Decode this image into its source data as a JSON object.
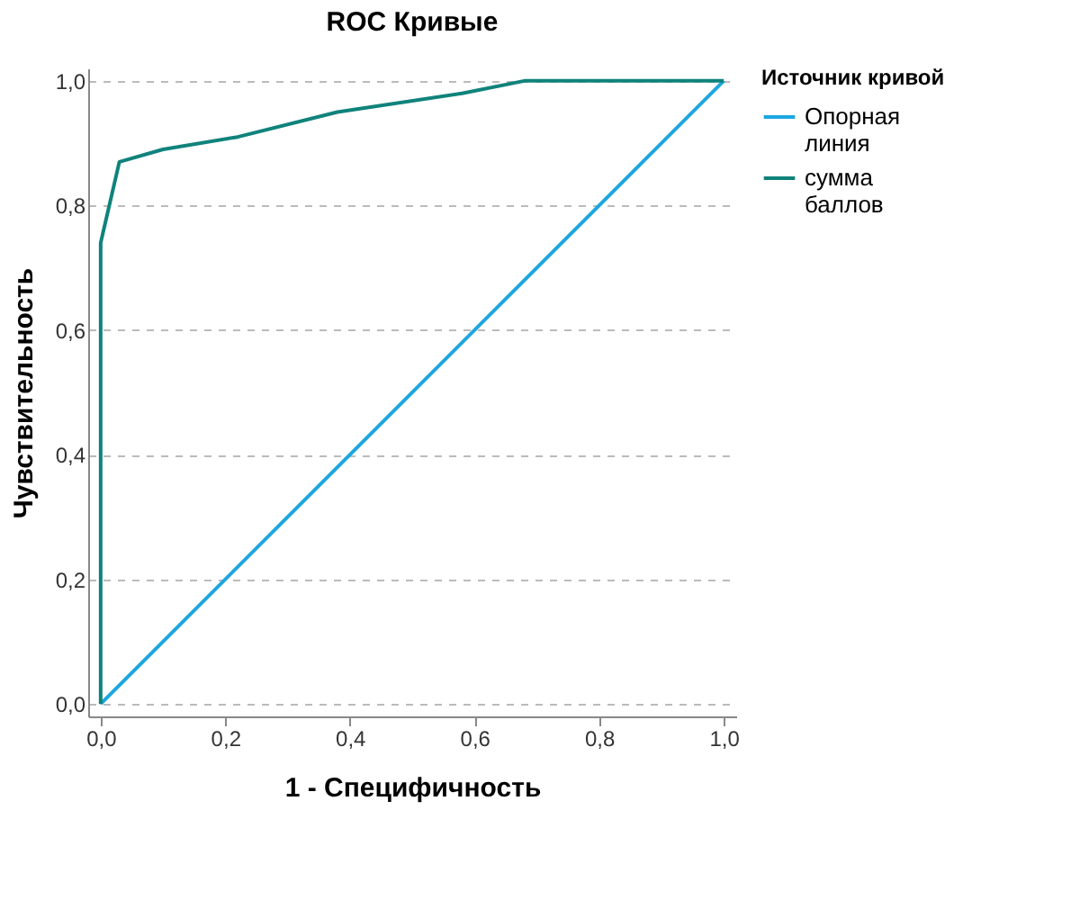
{
  "chart_data": {
    "type": "line",
    "title": "ROC Кривые",
    "xlabel": "1 - Специфичность",
    "ylabel": "Чувствительность",
    "legend_title": "Источник кривой",
    "legend": "top right",
    "grid": "y",
    "line_style": "solid",
    "marker": "none",
    "xlim": [
      -0.02,
      1.02
    ],
    "ylim": [
      -0.02,
      1.02
    ],
    "xticks": [
      {
        "value": 0,
        "label": "0,0"
      },
      {
        "value": 0.2,
        "label": "0,2"
      },
      {
        "value": 0.4,
        "label": "0,4"
      },
      {
        "value": 0.6,
        "label": "0,6"
      },
      {
        "value": 0.8,
        "label": "0,8"
      },
      {
        "value": 1,
        "label": "1,0"
      }
    ],
    "yticks": [
      {
        "value": 0,
        "label": "0,0"
      },
      {
        "value": 0.2,
        "label": "0,2"
      },
      {
        "value": 0.4,
        "label": "0,4"
      },
      {
        "value": 0.6,
        "label": "0,6"
      },
      {
        "value": 0.8,
        "label": "0,8"
      },
      {
        "value": 1,
        "label": "1,0"
      }
    ],
    "series": [
      {
        "name": "Опорная линия",
        "color": "#1ba7e1",
        "x": [
          0,
          1
        ],
        "values": [
          0,
          1
        ]
      },
      {
        "name": "сумма баллов",
        "color": "#0f837b",
        "x": [
          0,
          0,
          0.03,
          0.1,
          0.22,
          0.38,
          0.58,
          0.68,
          1
        ],
        "values": [
          0,
          0.74,
          0.87,
          0.89,
          0.91,
          0.95,
          0.98,
          1,
          1
        ]
      }
    ]
  }
}
